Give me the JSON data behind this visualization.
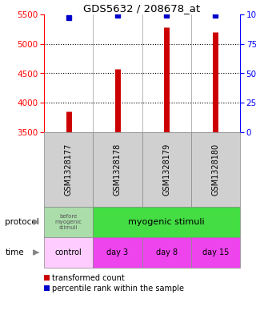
{
  "title": "GDS5632 / 208678_at",
  "samples": [
    "GSM1328177",
    "GSM1328178",
    "GSM1328179",
    "GSM1328180"
  ],
  "transformed_counts": [
    3850,
    4570,
    5280,
    5200
  ],
  "percentile_ranks": [
    97,
    99,
    99,
    99
  ],
  "ylim_left": [
    3500,
    5500
  ],
  "ylim_right": [
    0,
    100
  ],
  "yticks_left": [
    3500,
    4000,
    4500,
    5000,
    5500
  ],
  "yticks_right": [
    0,
    25,
    50,
    75,
    100
  ],
  "ytick_labels_right": [
    "0",
    "25",
    "50",
    "75",
    "100%"
  ],
  "bar_color": "#cc0000",
  "dot_color": "#0000cc",
  "protocol_label_0": "before\nmyogenic\nstimuli",
  "protocol_label_1": "myogenic stimuli",
  "protocol_color_0": "#aaddaa",
  "protocol_color_1": "#44dd44",
  "time_labels": [
    "control",
    "day 3",
    "day 8",
    "day 15"
  ],
  "time_color": "#ee44ee",
  "time_control_color": "#ffccff",
  "legend_bar_label": "transformed count",
  "legend_dot_label": "percentile rank within the sample",
  "protocol_row_label": "protocol",
  "time_row_label": "time",
  "gsm_bg_color": "#d0d0d0",
  "grid_color": "black"
}
